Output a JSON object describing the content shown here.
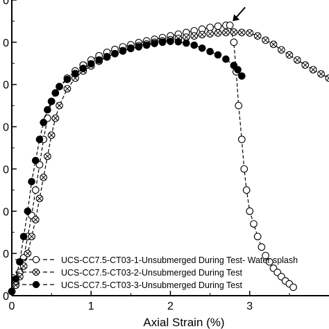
{
  "chart_data": {
    "type": "scatter",
    "xlabel": "Axial Strain (%)",
    "ylabel": "",
    "xlim": [
      0,
      4.0
    ],
    "ylim": [
      0,
      7.0
    ],
    "x_ticks": [
      0,
      1,
      2,
      3
    ],
    "x_tick_labels": [
      "0",
      "1",
      "2",
      "3"
    ],
    "y_ticks": [
      0,
      1,
      2,
      3,
      4,
      5,
      6,
      7
    ],
    "y_tick_labels": [
      "0",
      "0",
      "0",
      "0",
      "0",
      "0",
      "0",
      "0"
    ],
    "grid": false,
    "legend_position": "bottom-left",
    "series": [
      {
        "name": "UCS-CC7.5-CT03-1-Unsubmerged During Test- Water splash",
        "marker": "open-circle",
        "line": "dashed",
        "x": [
          0.0,
          0.05,
          0.1,
          0.15,
          0.2,
          0.25,
          0.3,
          0.35,
          0.4,
          0.45,
          0.5,
          0.55,
          0.6,
          0.7,
          0.8,
          0.9,
          1.0,
          1.1,
          1.2,
          1.3,
          1.4,
          1.5,
          1.6,
          1.7,
          1.8,
          1.9,
          2.0,
          2.1,
          2.2,
          2.3,
          2.4,
          2.5,
          2.6,
          2.7,
          2.75,
          2.8,
          2.83,
          2.86,
          2.9,
          2.93,
          2.96,
          3.0,
          3.05,
          3.1,
          3.15,
          3.2,
          3.25,
          3.3,
          3.35,
          3.4,
          3.45,
          3.5,
          3.55
        ],
        "y": [
          0.1,
          0.3,
          0.55,
          0.9,
          1.4,
          1.9,
          2.5,
          3.1,
          3.7,
          4.2,
          4.6,
          4.8,
          4.95,
          5.15,
          5.32,
          5.46,
          5.58,
          5.68,
          5.76,
          5.83,
          5.89,
          5.94,
          5.99,
          6.03,
          6.07,
          6.11,
          6.15,
          6.19,
          6.23,
          6.27,
          6.31,
          6.35,
          6.38,
          6.4,
          6.4,
          6.0,
          5.3,
          4.5,
          3.7,
          3.0,
          2.5,
          2.0,
          1.7,
          1.4,
          1.15,
          0.95,
          0.8,
          0.65,
          0.55,
          0.45,
          0.35,
          0.28,
          0.2
        ]
      },
      {
        "name": "UCS-CC7.5-CT03-2-Unsubmerged During Test",
        "marker": "crossed-circle",
        "line": "dashed",
        "x": [
          0.0,
          0.05,
          0.1,
          0.15,
          0.2,
          0.25,
          0.3,
          0.35,
          0.4,
          0.45,
          0.5,
          0.55,
          0.6,
          0.7,
          0.8,
          0.9,
          1.0,
          1.1,
          1.2,
          1.3,
          1.4,
          1.5,
          1.6,
          1.7,
          1.8,
          1.9,
          2.0,
          2.1,
          2.2,
          2.3,
          2.4,
          2.5,
          2.6,
          2.7,
          2.8,
          2.9,
          3.0,
          3.1,
          3.2,
          3.3,
          3.4,
          3.5,
          3.6,
          3.7,
          3.8,
          3.9,
          4.0
        ],
        "y": [
          0.1,
          0.25,
          0.45,
          0.7,
          1.0,
          1.4,
          1.8,
          2.3,
          2.8,
          3.3,
          3.8,
          4.2,
          4.5,
          4.9,
          5.15,
          5.32,
          5.44,
          5.55,
          5.65,
          5.73,
          5.8,
          5.86,
          5.92,
          5.96,
          6.0,
          6.03,
          6.06,
          6.09,
          6.12,
          6.15,
          6.18,
          6.2,
          6.22,
          6.23,
          6.24,
          6.23,
          6.22,
          6.15,
          6.05,
          5.95,
          5.82,
          5.7,
          5.58,
          5.46,
          5.35,
          5.25,
          5.15
        ]
      },
      {
        "name": "UCS-CC7.5-CT03-3-Unsubmerged During Test",
        "marker": "filled-circle",
        "line": "dashed",
        "x": [
          0.0,
          0.05,
          0.1,
          0.15,
          0.2,
          0.25,
          0.3,
          0.35,
          0.4,
          0.45,
          0.5,
          0.55,
          0.6,
          0.7,
          0.8,
          0.9,
          1.0,
          1.1,
          1.2,
          1.3,
          1.4,
          1.5,
          1.6,
          1.7,
          1.8,
          1.9,
          2.0,
          2.1,
          2.2,
          2.3,
          2.4,
          2.5,
          2.6,
          2.7,
          2.8,
          2.85,
          2.9
        ],
        "y": [
          0.1,
          0.4,
          0.8,
          1.4,
          2.0,
          2.7,
          3.2,
          3.7,
          4.1,
          4.4,
          4.6,
          4.8,
          4.95,
          5.12,
          5.26,
          5.38,
          5.49,
          5.58,
          5.66,
          5.73,
          5.79,
          5.85,
          5.89,
          5.93,
          5.97,
          6.0,
          6.02,
          6.01,
          5.98,
          5.93,
          5.86,
          5.78,
          5.7,
          5.6,
          5.45,
          5.35,
          5.2
        ]
      }
    ],
    "annotations": [
      {
        "type": "arrow",
        "points_to_series": 0,
        "x": 2.75,
        "y": 6.4
      }
    ],
    "colors": {
      "axis": "#000000",
      "marker": "#000000",
      "background": "#ffffff"
    }
  }
}
